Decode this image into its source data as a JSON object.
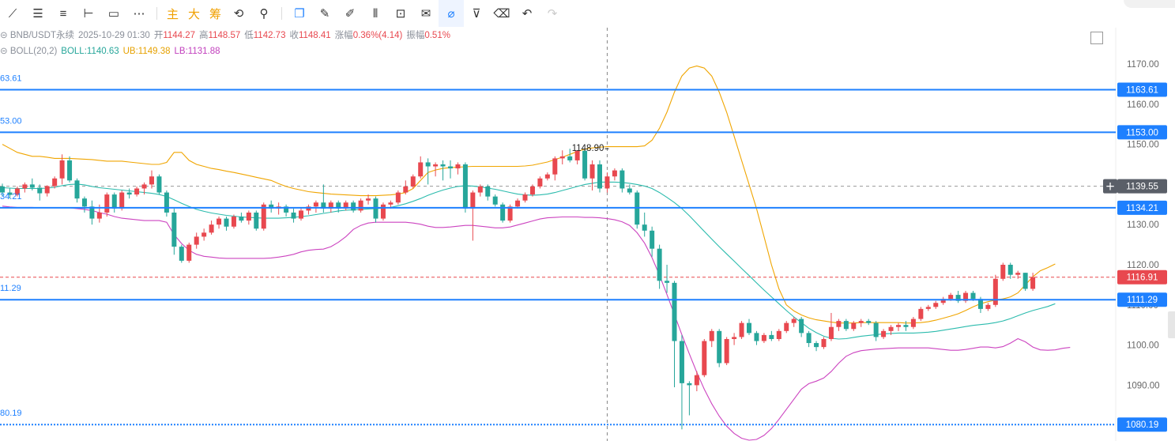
{
  "toolbar": {
    "tools": [
      "line-tool-icon",
      "parallel-lines-icon",
      "horizontal-lines-icon",
      "horizontal-segment-icon",
      "rectangle-icon",
      "more-icon"
    ],
    "cn_buttons": [
      "主",
      "大",
      "筹"
    ],
    "tools2": [
      "replay-icon",
      "measure-icon",
      "copy-icon",
      "ruler-icon",
      "pen-icon",
      "candles-icon",
      "lock-icon",
      "note-icon",
      "magnet-icon",
      "filter-icon",
      "trash-icon",
      "undo-icon",
      "redo-icon"
    ]
  },
  "header": {
    "symbol": "BNB/USDT永续",
    "datetime": "2025-10-29 01:30",
    "open_label": "开",
    "open": "1144.27",
    "high_label": "高",
    "high": "1148.57",
    "low_label": "低",
    "low": "1142.73",
    "close_label": "收",
    "close": "1148.41",
    "change_label": "涨幅",
    "change": "0.36%(4.14)",
    "amp_label": "振幅",
    "amp": "0.51%",
    "boll_label": "BOLL(20,2)",
    "boll_mid": "BOLL:1140.63",
    "boll_ub": "UB:1149.38",
    "boll_lb": "LB:1131.88"
  },
  "colors": {
    "up": "#e8484f",
    "down": "#26a69a",
    "ub": "#f0a500",
    "mid": "#2bbbad",
    "lb": "#cc44c0",
    "hline": "#1e80ff",
    "current": "#e8484f",
    "crosshair": "#555555"
  },
  "chart_data": {
    "type": "candlestick",
    "ylim": [
      1078,
      1180
    ],
    "y_ticks": [
      1170,
      1160,
      1150,
      1140,
      1130,
      1120,
      1110,
      1100,
      1090
    ],
    "y_tick_labels": [
      "1170.00",
      "1160.00",
      "1150.00",
      "1140.00",
      "1130.00",
      "1120.00",
      "1110.00",
      "1100.00",
      "1090.00"
    ],
    "horizontal_lines": [
      {
        "value": 1163.61,
        "label": "1163.61",
        "left_label": "63.61",
        "style": "solid"
      },
      {
        "value": 1153.0,
        "label": "1153.00",
        "left_label": "53.00",
        "style": "solid"
      },
      {
        "value": 1134.21,
        "label": "1134.21",
        "left_label": "34.21",
        "style": "solid"
      },
      {
        "value": 1111.29,
        "label": "1111.29",
        "left_label": "11.29",
        "style": "solid"
      },
      {
        "value": 1080.19,
        "label": "1080.19",
        "left_label": "80.19",
        "style": "dotted"
      }
    ],
    "current_price": {
      "value": 1116.91,
      "label": "1116.91"
    },
    "crosshair": {
      "value": 1139.55,
      "label": "1139.55",
      "candle_index": 81
    },
    "high_marker": {
      "value": 1148.9,
      "label": "1148.90",
      "candle_index": 81
    },
    "candles": [
      [
        1139.5,
        1140.2,
        1137.0,
        1138.0
      ],
      [
        1138.0,
        1139.0,
        1136.5,
        1137.4
      ],
      [
        1137.4,
        1139.5,
        1137.0,
        1139.0
      ],
      [
        1139.0,
        1140.5,
        1138.0,
        1140.0
      ],
      [
        1140.0,
        1141.5,
        1138.5,
        1139.2
      ],
      [
        1139.2,
        1140.0,
        1136.0,
        1137.8
      ],
      [
        1137.8,
        1139.8,
        1137.0,
        1139.6
      ],
      [
        1139.6,
        1142.0,
        1139.0,
        1141.5
      ],
      [
        1141.5,
        1147.5,
        1140.0,
        1146.0
      ],
      [
        1146.0,
        1147.0,
        1140.5,
        1141.0
      ],
      [
        1141.0,
        1141.5,
        1135.5,
        1136.5
      ],
      [
        1136.5,
        1137.0,
        1133.0,
        1134.5
      ],
      [
        1134.5,
        1136.0,
        1130.0,
        1131.5
      ],
      [
        1131.5,
        1135.0,
        1130.5,
        1133.0
      ],
      [
        1133.0,
        1138.0,
        1132.0,
        1137.5
      ],
      [
        1137.5,
        1138.0,
        1133.0,
        1134.0
      ],
      [
        1134.0,
        1138.5,
        1133.5,
        1138.0
      ],
      [
        1138.0,
        1139.0,
        1136.5,
        1137.5
      ],
      [
        1137.5,
        1139.5,
        1137.0,
        1139.0
      ],
      [
        1139.0,
        1140.5,
        1137.5,
        1140.0
      ],
      [
        1140.0,
        1143.5,
        1139.0,
        1142.0
      ],
      [
        1142.0,
        1142.5,
        1137.5,
        1138.0
      ],
      [
        1138.0,
        1138.5,
        1132.0,
        1133.0
      ],
      [
        1133.0,
        1134.0,
        1122.5,
        1124.5
      ],
      [
        1124.5,
        1125.0,
        1120.5,
        1121.0
      ],
      [
        1121.0,
        1125.5,
        1120.5,
        1125.0
      ],
      [
        1125.0,
        1128.0,
        1124.0,
        1127.0
      ],
      [
        1127.0,
        1129.0,
        1126.0,
        1128.0
      ],
      [
        1128.0,
        1131.0,
        1127.5,
        1130.0
      ],
      [
        1130.0,
        1132.0,
        1129.0,
        1131.5
      ],
      [
        1131.5,
        1132.0,
        1128.5,
        1129.5
      ],
      [
        1129.5,
        1132.5,
        1129.0,
        1132.0
      ],
      [
        1132.0,
        1133.0,
        1130.5,
        1131.0
      ],
      [
        1131.0,
        1133.5,
        1130.0,
        1133.0
      ],
      [
        1133.0,
        1133.5,
        1128.5,
        1129.0
      ],
      [
        1129.0,
        1135.5,
        1128.5,
        1135.0
      ],
      [
        1135.0,
        1136.0,
        1133.0,
        1134.0
      ],
      [
        1134.0,
        1135.5,
        1132.5,
        1134.5
      ],
      [
        1134.5,
        1135.0,
        1132.0,
        1133.0
      ],
      [
        1133.0,
        1134.0,
        1130.5,
        1131.5
      ],
      [
        1131.5,
        1134.0,
        1131.0,
        1133.5
      ],
      [
        1133.5,
        1135.0,
        1132.5,
        1134.5
      ],
      [
        1134.5,
        1136.0,
        1133.0,
        1135.5
      ],
      [
        1135.5,
        1140.0,
        1133.0,
        1134.0
      ],
      [
        1134.0,
        1136.0,
        1133.0,
        1135.5
      ],
      [
        1135.5,
        1136.0,
        1133.0,
        1134.0
      ],
      [
        1134.0,
        1136.0,
        1133.5,
        1135.5
      ],
      [
        1135.5,
        1136.0,
        1133.0,
        1133.5
      ],
      [
        1133.5,
        1136.5,
        1133.0,
        1136.0
      ],
      [
        1136.0,
        1137.5,
        1135.0,
        1136.5
      ],
      [
        1136.5,
        1137.0,
        1130.5,
        1131.5
      ],
      [
        1131.5,
        1135.5,
        1131.0,
        1135.0
      ],
      [
        1135.0,
        1136.0,
        1134.0,
        1135.5
      ],
      [
        1135.5,
        1138.5,
        1135.0,
        1138.0
      ],
      [
        1138.0,
        1141.0,
        1137.5,
        1139.5
      ],
      [
        1139.5,
        1142.5,
        1139.0,
        1142.0
      ],
      [
        1142.0,
        1147.0,
        1141.5,
        1145.5
      ],
      [
        1145.5,
        1146.5,
        1140.0,
        1144.5
      ],
      [
        1144.5,
        1145.5,
        1142.0,
        1145.0
      ],
      [
        1145.0,
        1146.0,
        1141.0,
        1144.5
      ],
      [
        1144.5,
        1146.0,
        1141.5,
        1144.0
      ],
      [
        1144.0,
        1145.5,
        1142.5,
        1145.0
      ],
      [
        1145.0,
        1145.5,
        1133.0,
        1134.0
      ],
      [
        1134.0,
        1138.5,
        1126.0,
        1138.0
      ],
      [
        1138.0,
        1140.0,
        1137.0,
        1139.5
      ],
      [
        1139.5,
        1140.0,
        1136.0,
        1137.0
      ],
      [
        1137.0,
        1137.5,
        1134.5,
        1135.0
      ],
      [
        1135.0,
        1135.5,
        1130.5,
        1131.0
      ],
      [
        1131.0,
        1135.0,
        1130.5,
        1134.5
      ],
      [
        1134.5,
        1136.5,
        1134.0,
        1136.0
      ],
      [
        1136.0,
        1138.0,
        1135.5,
        1137.5
      ],
      [
        1137.5,
        1140.0,
        1137.0,
        1139.5
      ],
      [
        1139.5,
        1142.0,
        1139.0,
        1141.5
      ],
      [
        1141.5,
        1143.0,
        1141.0,
        1142.5
      ],
      [
        1142.5,
        1147.0,
        1141.0,
        1146.5
      ],
      [
        1146.5,
        1148.5,
        1145.0,
        1147.0
      ],
      [
        1147.0,
        1148.9,
        1145.5,
        1146.0
      ],
      [
        1146.0,
        1148.6,
        1145.0,
        1148.4
      ],
      [
        1148.4,
        1148.7,
        1141.0,
        1141.5
      ],
      [
        1141.5,
        1146.0,
        1138.5,
        1145.0
      ],
      [
        1145.0,
        1146.0,
        1138.0,
        1139.0
      ],
      [
        1139.0,
        1143.0,
        1138.0,
        1142.0
      ],
      [
        1142.0,
        1144.0,
        1141.0,
        1143.5
      ],
      [
        1143.5,
        1144.0,
        1138.0,
        1139.0
      ],
      [
        1139.0,
        1140.0,
        1137.5,
        1138.0
      ],
      [
        1138.0,
        1138.5,
        1129.0,
        1130.0
      ],
      [
        1130.0,
        1133.0,
        1127.0,
        1128.5
      ],
      [
        1128.5,
        1129.5,
        1122.0,
        1124.0
      ],
      [
        1124.0,
        1125.0,
        1114.0,
        1116.0
      ],
      [
        1116.0,
        1120.0,
        1113.0,
        1115.5
      ],
      [
        1115.5,
        1116.0,
        1089.5,
        1101.0
      ],
      [
        1101.0,
        1102.5,
        1079.0,
        1090.5
      ],
      [
        1090.5,
        1091.0,
        1082.5,
        1090.0
      ],
      [
        1090.0,
        1093.5,
        1088.5,
        1092.5
      ],
      [
        1092.5,
        1101.5,
        1092.0,
        1101.0
      ],
      [
        1101.0,
        1104.0,
        1099.5,
        1103.5
      ],
      [
        1103.5,
        1104.0,
        1094.5,
        1095.5
      ],
      [
        1095.5,
        1102.0,
        1095.0,
        1101.5
      ],
      [
        1101.5,
        1103.0,
        1100.0,
        1102.0
      ],
      [
        1102.0,
        1106.0,
        1101.5,
        1105.5
      ],
      [
        1105.5,
        1106.5,
        1102.5,
        1103.0
      ],
      [
        1103.0,
        1103.5,
        1100.0,
        1101.0
      ],
      [
        1101.0,
        1103.0,
        1100.5,
        1102.5
      ],
      [
        1102.5,
        1103.5,
        1101.0,
        1101.5
      ],
      [
        1101.5,
        1104.0,
        1101.0,
        1103.5
      ],
      [
        1103.5,
        1106.0,
        1103.0,
        1105.5
      ],
      [
        1105.5,
        1107.0,
        1104.5,
        1106.5
      ],
      [
        1106.5,
        1107.0,
        1102.0,
        1103.0
      ],
      [
        1103.0,
        1103.5,
        1099.5,
        1100.5
      ],
      [
        1100.5,
        1101.0,
        1098.5,
        1099.5
      ],
      [
        1099.5,
        1102.0,
        1099.0,
        1101.5
      ],
      [
        1101.5,
        1108.0,
        1101.0,
        1104.5
      ],
      [
        1104.5,
        1106.5,
        1103.5,
        1106.0
      ],
      [
        1106.0,
        1106.5,
        1103.5,
        1104.0
      ],
      [
        1104.0,
        1106.0,
        1103.5,
        1105.5
      ],
      [
        1105.5,
        1106.5,
        1104.5,
        1106.0
      ],
      [
        1106.0,
        1106.5,
        1105.0,
        1105.5
      ],
      [
        1105.5,
        1106.0,
        1101.0,
        1102.0
      ],
      [
        1102.0,
        1104.0,
        1101.5,
        1103.5
      ],
      [
        1103.5,
        1105.0,
        1102.5,
        1104.5
      ],
      [
        1104.5,
        1105.5,
        1103.5,
        1105.0
      ],
      [
        1105.0,
        1106.0,
        1103.5,
        1104.5
      ],
      [
        1104.5,
        1107.0,
        1104.0,
        1106.5
      ],
      [
        1106.5,
        1109.5,
        1106.0,
        1109.0
      ],
      [
        1109.0,
        1110.0,
        1108.5,
        1109.5
      ],
      [
        1109.5,
        1111.0,
        1109.0,
        1110.5
      ],
      [
        1110.5,
        1112.0,
        1110.0,
        1111.5
      ],
      [
        1111.5,
        1113.0,
        1111.0,
        1112.5
      ],
      [
        1112.5,
        1113.5,
        1110.5,
        1111.0
      ],
      [
        1111.0,
        1113.5,
        1110.5,
        1113.0
      ],
      [
        1113.0,
        1113.5,
        1111.0,
        1111.5
      ],
      [
        1111.5,
        1112.0,
        1108.0,
        1109.0
      ],
      [
        1109.0,
        1110.5,
        1108.5,
        1110.0
      ],
      [
        1110.0,
        1117.5,
        1109.5,
        1116.5
      ],
      [
        1116.5,
        1120.5,
        1116.0,
        1120.0
      ],
      [
        1120.0,
        1120.5,
        1116.5,
        1117.5
      ],
      [
        1117.5,
        1118.5,
        1116.5,
        1118.0
      ],
      [
        1118.0,
        1118.0,
        1113.5,
        1114.0
      ],
      [
        1114.0,
        1118.0,
        1113.5,
        1116.9
      ]
    ],
    "boll_ub": [
      1150,
      1149,
      1148,
      1147.5,
      1147,
      1147,
      1146.8,
      1146.5,
      1146.5,
      1146.5,
      1146.4,
      1146.3,
      1146.2,
      1146,
      1145.8,
      1145.8,
      1145.8,
      1145.6,
      1145.4,
      1145.2,
      1145,
      1145,
      1145.5,
      1148,
      1148,
      1146,
      1145,
      1144.5,
      1144,
      1143.7,
      1143.3,
      1143,
      1142.6,
      1142.2,
      1141.8,
      1141.4,
      1141,
      1140.2,
      1139.5,
      1139,
      1138.6,
      1138.2,
      1138,
      1137.8,
      1137.6,
      1137.5,
      1137.4,
      1137.3,
      1137.2,
      1137.2,
      1137.2,
      1137.3,
      1137.4,
      1137.6,
      1138,
      1139,
      1141,
      1143,
      1143.6,
      1144,
      1144.2,
      1144.3,
      1144.4,
      1144.5,
      1144.5,
      1144.5,
      1144.5,
      1144.5,
      1144.5,
      1144.5,
      1144.6,
      1144.8,
      1145.2,
      1145.6,
      1146.2,
      1146.8,
      1147.5,
      1148.2,
      1148.8,
      1149.1,
      1149.3,
      1149.4,
      1149.4,
      1149.4,
      1149.4,
      1149.4,
      1149.6,
      1151,
      1154,
      1158,
      1163,
      1167,
      1169,
      1169.5,
      1169,
      1167,
      1163,
      1158,
      1152,
      1146,
      1140,
      1134,
      1127,
      1120,
      1114,
      1110,
      1108.5,
      1107.5,
      1106.8,
      1106.3,
      1106,
      1105.7,
      1105.5,
      1105.5,
      1105.5,
      1105.6,
      1105.6,
      1105.6,
      1105.6,
      1105.6,
      1105.6,
      1105.5,
      1105.5,
      1105.6,
      1105.8,
      1106.2,
      1106.7,
      1107.2,
      1107.8,
      1108.6,
      1109.5,
      1110.3,
      1110.8,
      1111.2,
      1111.5,
      1112,
      1113,
      1115,
      1117,
      1118.5,
      1119.3,
      1120.2
    ],
    "boll_mid": [
      1139.2,
      1139.1,
      1139.0,
      1139.0,
      1139.0,
      1139.0,
      1139.1,
      1139.3,
      1139.7,
      1140.0,
      1140.1,
      1139.9,
      1139.5,
      1139.2,
      1139.0,
      1138.8,
      1138.6,
      1138.4,
      1138.2,
      1138.0,
      1137.8,
      1137.5,
      1137.0,
      1136.2,
      1135.3,
      1134.5,
      1133.8,
      1133.3,
      1132.9,
      1132.6,
      1132.3,
      1132.1,
      1131.9,
      1131.8,
      1131.7,
      1131.6,
      1131.6,
      1131.6,
      1131.7,
      1131.8,
      1132.0,
      1132.2,
      1132.5,
      1132.8,
      1133.1,
      1133.4,
      1133.6,
      1133.7,
      1133.8,
      1133.9,
      1134.0,
      1134.1,
      1134.3,
      1134.7,
      1135.2,
      1135.8,
      1136.5,
      1137.3,
      1138.0,
      1138.6,
      1139.1,
      1139.5,
      1139.7,
      1139.6,
      1139.4,
      1139.1,
      1138.8,
      1138.4,
      1138.0,
      1137.6,
      1137.4,
      1137.3,
      1137.4,
      1137.6,
      1138.0,
      1138.5,
      1139.0,
      1139.5,
      1140.0,
      1140.3,
      1140.6,
      1140.6,
      1140.6,
      1140.5,
      1140.3,
      1140.0,
      1139.6,
      1139.0,
      1138.0,
      1136.8,
      1135.5,
      1134.0,
      1132.2,
      1130.3,
      1128.3,
      1126.4,
      1124.5,
      1122.7,
      1120.9,
      1119.1,
      1117.3,
      1115.5,
      1113.7,
      1112.0,
      1110.3,
      1108.6,
      1107.0,
      1105.6,
      1104.2,
      1103.1,
      1102.2,
      1101.7,
      1101.5,
      1101.6,
      1101.9,
      1102.2,
      1102.4,
      1102.6,
      1102.8,
      1102.9,
      1103.0,
      1103.0,
      1103.0,
      1103.1,
      1103.2,
      1103.4,
      1103.7,
      1104.0,
      1104.3,
      1104.6,
      1104.9,
      1105.1,
      1105.3,
      1105.6,
      1106.0,
      1106.6,
      1107.3,
      1108.0,
      1108.6,
      1109.1,
      1109.6,
      1110.3
    ],
    "boll_lb": [
      1134.6,
      1134.4,
      1134.3,
      1134.3,
      1134.3,
      1134.2,
      1134.2,
      1134.2,
      1134.2,
      1134.2,
      1134.0,
      1133.8,
      1133.5,
      1133.0,
      1132.6,
      1132.0,
      1131.6,
      1131.4,
      1131.2,
      1131.0,
      1131.0,
      1131.0,
      1130.6,
      1127.5,
      1125.3,
      1123.6,
      1122.6,
      1122.1,
      1121.9,
      1121.7,
      1121.6,
      1121.6,
      1121.6,
      1121.6,
      1121.6,
      1121.6,
      1121.7,
      1121.9,
      1122.2,
      1122.6,
      1123.2,
      1123.6,
      1123.8,
      1123.9,
      1124.5,
      1125.6,
      1127.0,
      1128.8,
      1129.8,
      1130.4,
      1130.6,
      1130.6,
      1130.6,
      1130.6,
      1130.6,
      1130.4,
      1130.1,
      1129.6,
      1129.3,
      1129.3,
      1129.4,
      1129.6,
      1129.8,
      1129.8,
      1129.6,
      1129.4,
      1129.2,
      1129.2,
      1129.4,
      1129.9,
      1130.4,
      1130.9,
      1131.4,
      1131.7,
      1131.8,
      1131.9,
      1131.9,
      1131.9,
      1131.8,
      1131.8,
      1131.7,
      1131.5,
      1131.2,
      1130.7,
      1129.8,
      1128.0,
      1125.4,
      1121.8,
      1117.4,
      1112.6,
      1107.6,
      1102.6,
      1097.8,
      1093.2,
      1089.0,
      1085.4,
      1082.3,
      1079.8,
      1078.0,
      1076.8,
      1076.3,
      1076.5,
      1077.5,
      1079.2,
      1081.5,
      1084.0,
      1086.5,
      1089.0,
      1090.4,
      1091.0,
      1091.8,
      1093.4,
      1095.5,
      1097.2,
      1098.1,
      1098.6,
      1098.8,
      1099.0,
      1099.1,
      1099.2,
      1099.3,
      1099.3,
      1099.3,
      1099.3,
      1099.3,
      1099.1,
      1098.9,
      1098.7,
      1098.7,
      1098.9,
      1099.2,
      1099.5,
      1099.5,
      1099.3,
      1099.6,
      1100.5,
      1101.6,
      1100.8,
      1099.5,
      1098.8,
      1098.7,
      1098.8,
      1099.2,
      1099.4
    ]
  }
}
